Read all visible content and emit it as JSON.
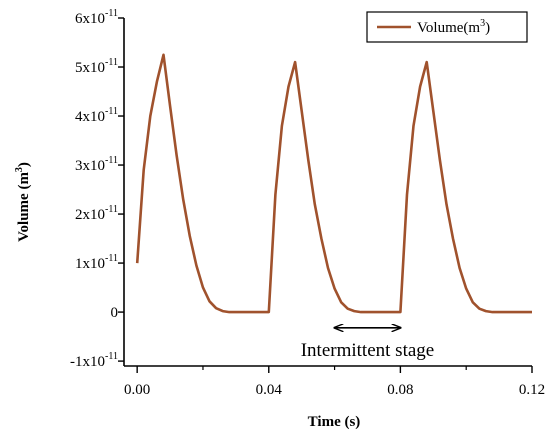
{
  "chart_data": {
    "type": "line",
    "xlabel": "Time (s)",
    "ylabel_main": "Volume (m",
    "ylabel_sup": "3",
    "ylabel_end": ")",
    "xlim": [
      -0.004,
      0.12
    ],
    "ylim": [
      -1.1e-11,
      6e-11
    ],
    "xticks": [
      0.0,
      0.04,
      0.08,
      0.12
    ],
    "xtick_labels": [
      "0.00",
      "0.04",
      "0.08",
      "0.12"
    ],
    "yticks": [
      -1e-11,
      0,
      1e-11,
      2e-11,
      3e-11,
      4e-11,
      5e-11,
      6e-11
    ],
    "ytick_labels": [
      {
        "base": "-1x10",
        "exp": "-11"
      },
      {
        "base": "0",
        "exp": ""
      },
      {
        "base": "1x10",
        "exp": "-11"
      },
      {
        "base": "2x10",
        "exp": "-11"
      },
      {
        "base": "3x10",
        "exp": "-11"
      },
      {
        "base": "4x10",
        "exp": "-11"
      },
      {
        "base": "5x10",
        "exp": "-11"
      },
      {
        "base": "6x10",
        "exp": "-11"
      }
    ],
    "legend": {
      "position": "top-right",
      "label_main": "Volume(m",
      "label_sup": "3",
      "label_end": ")"
    },
    "series": [
      {
        "name": "Volume(m3)",
        "color": "#a0522d",
        "x": [
          0.0,
          0.002,
          0.004,
          0.006,
          0.008,
          0.01,
          0.012,
          0.014,
          0.016,
          0.018,
          0.02,
          0.022,
          0.024,
          0.026,
          0.028,
          0.03,
          0.035,
          0.04,
          0.042,
          0.044,
          0.046,
          0.048,
          0.05,
          0.052,
          0.054,
          0.056,
          0.058,
          0.06,
          0.062,
          0.064,
          0.066,
          0.068,
          0.07,
          0.075,
          0.08,
          0.082,
          0.084,
          0.086,
          0.088,
          0.09,
          0.092,
          0.094,
          0.096,
          0.098,
          0.1,
          0.102,
          0.104,
          0.106,
          0.108,
          0.11,
          0.115,
          0.12
        ],
        "y": [
          1e-11,
          2.9e-11,
          4e-11,
          4.7e-11,
          5.25e-11,
          4.2e-11,
          3.2e-11,
          2.3e-11,
          1.55e-11,
          9.5e-12,
          5e-12,
          2.2e-12,
          8e-13,
          2e-13,
          0.0,
          0.0,
          0.0,
          0.0,
          2.4e-11,
          3.8e-11,
          4.6e-11,
          5.1e-11,
          4.1e-11,
          3.1e-11,
          2.2e-11,
          1.5e-11,
          9e-12,
          4.8e-12,
          2e-12,
          7e-13,
          2e-13,
          0.0,
          0.0,
          0.0,
          0.0,
          2.4e-11,
          3.8e-11,
          4.6e-11,
          5.1e-11,
          4.1e-11,
          3.1e-11,
          2.2e-11,
          1.5e-11,
          9e-12,
          4.8e-12,
          2e-12,
          7e-13,
          2e-13,
          0.0,
          0.0,
          0.0,
          0.0
        ]
      }
    ],
    "annotations": [
      {
        "text": "Intermittent stage",
        "arrow_x": [
          0.06,
          0.08
        ],
        "arrow_y": -3.2e-12
      }
    ]
  }
}
